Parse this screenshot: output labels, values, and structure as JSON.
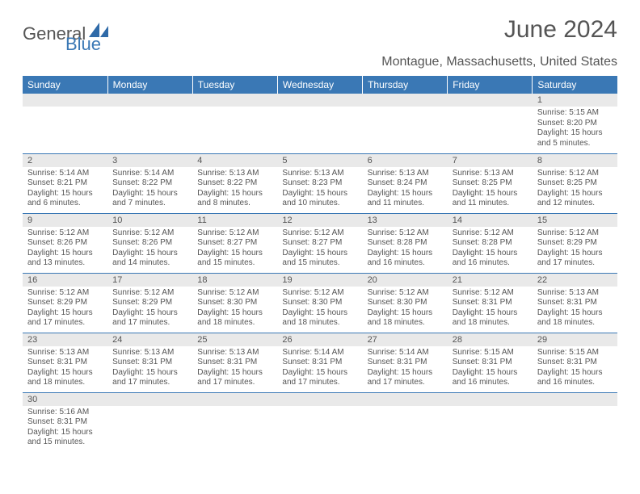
{
  "logo": {
    "general": "General",
    "blue": "Blue"
  },
  "title": "June 2024",
  "location": "Montague, Massachusetts, United States",
  "colors": {
    "headerBg": "#3a78b5",
    "headerText": "#ffffff",
    "dayNumBg": "#e9e9e9",
    "bodyText": "#555555",
    "rowBorder": "#3a78b5"
  },
  "weekdays": [
    "Sunday",
    "Monday",
    "Tuesday",
    "Wednesday",
    "Thursday",
    "Friday",
    "Saturday"
  ],
  "weeks": [
    [
      null,
      null,
      null,
      null,
      null,
      null,
      {
        "n": "1",
        "sr": "Sunrise: 5:15 AM",
        "ss": "Sunset: 8:20 PM",
        "dl": "Daylight: 15 hours and 5 minutes."
      }
    ],
    [
      {
        "n": "2",
        "sr": "Sunrise: 5:14 AM",
        "ss": "Sunset: 8:21 PM",
        "dl": "Daylight: 15 hours and 6 minutes."
      },
      {
        "n": "3",
        "sr": "Sunrise: 5:14 AM",
        "ss": "Sunset: 8:22 PM",
        "dl": "Daylight: 15 hours and 7 minutes."
      },
      {
        "n": "4",
        "sr": "Sunrise: 5:13 AM",
        "ss": "Sunset: 8:22 PM",
        "dl": "Daylight: 15 hours and 8 minutes."
      },
      {
        "n": "5",
        "sr": "Sunrise: 5:13 AM",
        "ss": "Sunset: 8:23 PM",
        "dl": "Daylight: 15 hours and 10 minutes."
      },
      {
        "n": "6",
        "sr": "Sunrise: 5:13 AM",
        "ss": "Sunset: 8:24 PM",
        "dl": "Daylight: 15 hours and 11 minutes."
      },
      {
        "n": "7",
        "sr": "Sunrise: 5:13 AM",
        "ss": "Sunset: 8:25 PM",
        "dl": "Daylight: 15 hours and 11 minutes."
      },
      {
        "n": "8",
        "sr": "Sunrise: 5:12 AM",
        "ss": "Sunset: 8:25 PM",
        "dl": "Daylight: 15 hours and 12 minutes."
      }
    ],
    [
      {
        "n": "9",
        "sr": "Sunrise: 5:12 AM",
        "ss": "Sunset: 8:26 PM",
        "dl": "Daylight: 15 hours and 13 minutes."
      },
      {
        "n": "10",
        "sr": "Sunrise: 5:12 AM",
        "ss": "Sunset: 8:26 PM",
        "dl": "Daylight: 15 hours and 14 minutes."
      },
      {
        "n": "11",
        "sr": "Sunrise: 5:12 AM",
        "ss": "Sunset: 8:27 PM",
        "dl": "Daylight: 15 hours and 15 minutes."
      },
      {
        "n": "12",
        "sr": "Sunrise: 5:12 AM",
        "ss": "Sunset: 8:27 PM",
        "dl": "Daylight: 15 hours and 15 minutes."
      },
      {
        "n": "13",
        "sr": "Sunrise: 5:12 AM",
        "ss": "Sunset: 8:28 PM",
        "dl": "Daylight: 15 hours and 16 minutes."
      },
      {
        "n": "14",
        "sr": "Sunrise: 5:12 AM",
        "ss": "Sunset: 8:28 PM",
        "dl": "Daylight: 15 hours and 16 minutes."
      },
      {
        "n": "15",
        "sr": "Sunrise: 5:12 AM",
        "ss": "Sunset: 8:29 PM",
        "dl": "Daylight: 15 hours and 17 minutes."
      }
    ],
    [
      {
        "n": "16",
        "sr": "Sunrise: 5:12 AM",
        "ss": "Sunset: 8:29 PM",
        "dl": "Daylight: 15 hours and 17 minutes."
      },
      {
        "n": "17",
        "sr": "Sunrise: 5:12 AM",
        "ss": "Sunset: 8:29 PM",
        "dl": "Daylight: 15 hours and 17 minutes."
      },
      {
        "n": "18",
        "sr": "Sunrise: 5:12 AM",
        "ss": "Sunset: 8:30 PM",
        "dl": "Daylight: 15 hours and 18 minutes."
      },
      {
        "n": "19",
        "sr": "Sunrise: 5:12 AM",
        "ss": "Sunset: 8:30 PM",
        "dl": "Daylight: 15 hours and 18 minutes."
      },
      {
        "n": "20",
        "sr": "Sunrise: 5:12 AM",
        "ss": "Sunset: 8:30 PM",
        "dl": "Daylight: 15 hours and 18 minutes."
      },
      {
        "n": "21",
        "sr": "Sunrise: 5:12 AM",
        "ss": "Sunset: 8:31 PM",
        "dl": "Daylight: 15 hours and 18 minutes."
      },
      {
        "n": "22",
        "sr": "Sunrise: 5:13 AM",
        "ss": "Sunset: 8:31 PM",
        "dl": "Daylight: 15 hours and 18 minutes."
      }
    ],
    [
      {
        "n": "23",
        "sr": "Sunrise: 5:13 AM",
        "ss": "Sunset: 8:31 PM",
        "dl": "Daylight: 15 hours and 18 minutes."
      },
      {
        "n": "24",
        "sr": "Sunrise: 5:13 AM",
        "ss": "Sunset: 8:31 PM",
        "dl": "Daylight: 15 hours and 17 minutes."
      },
      {
        "n": "25",
        "sr": "Sunrise: 5:13 AM",
        "ss": "Sunset: 8:31 PM",
        "dl": "Daylight: 15 hours and 17 minutes."
      },
      {
        "n": "26",
        "sr": "Sunrise: 5:14 AM",
        "ss": "Sunset: 8:31 PM",
        "dl": "Daylight: 15 hours and 17 minutes."
      },
      {
        "n": "27",
        "sr": "Sunrise: 5:14 AM",
        "ss": "Sunset: 8:31 PM",
        "dl": "Daylight: 15 hours and 17 minutes."
      },
      {
        "n": "28",
        "sr": "Sunrise: 5:15 AM",
        "ss": "Sunset: 8:31 PM",
        "dl": "Daylight: 15 hours and 16 minutes."
      },
      {
        "n": "29",
        "sr": "Sunrise: 5:15 AM",
        "ss": "Sunset: 8:31 PM",
        "dl": "Daylight: 15 hours and 16 minutes."
      }
    ],
    [
      {
        "n": "30",
        "sr": "Sunrise: 5:16 AM",
        "ss": "Sunset: 8:31 PM",
        "dl": "Daylight: 15 hours and 15 minutes."
      },
      null,
      null,
      null,
      null,
      null,
      null
    ]
  ]
}
